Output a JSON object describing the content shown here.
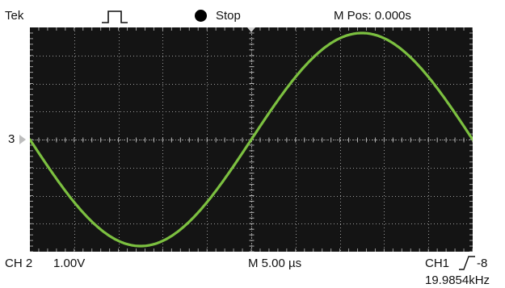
{
  "header": {
    "brand": "Tek",
    "trigger_mode_icon": "pulse-icon",
    "run_state": "Stop",
    "run_state_icon": "stop-dot-icon",
    "m_pos": "M Pos: 0.000s"
  },
  "screen": {
    "divisions_x": 10,
    "divisions_y": 8,
    "background": "#141414",
    "grid_color": "#9a9a9a",
    "trace_color": "#7cc040",
    "trace_start_phase_deg": 180,
    "trace_cycles_on_screen": 1
  },
  "channel_marker": {
    "label": "3",
    "icon": "arrow-right-icon"
  },
  "footer": {
    "ch2_label": "CH 2",
    "ch2_scale": "1.00V",
    "timebase": "M 5.00 µs",
    "trigger_source": "CH1",
    "trigger_edge_icon": "rising-edge-icon",
    "trigger_level": "-8",
    "frequency": "19.9854kHz"
  }
}
